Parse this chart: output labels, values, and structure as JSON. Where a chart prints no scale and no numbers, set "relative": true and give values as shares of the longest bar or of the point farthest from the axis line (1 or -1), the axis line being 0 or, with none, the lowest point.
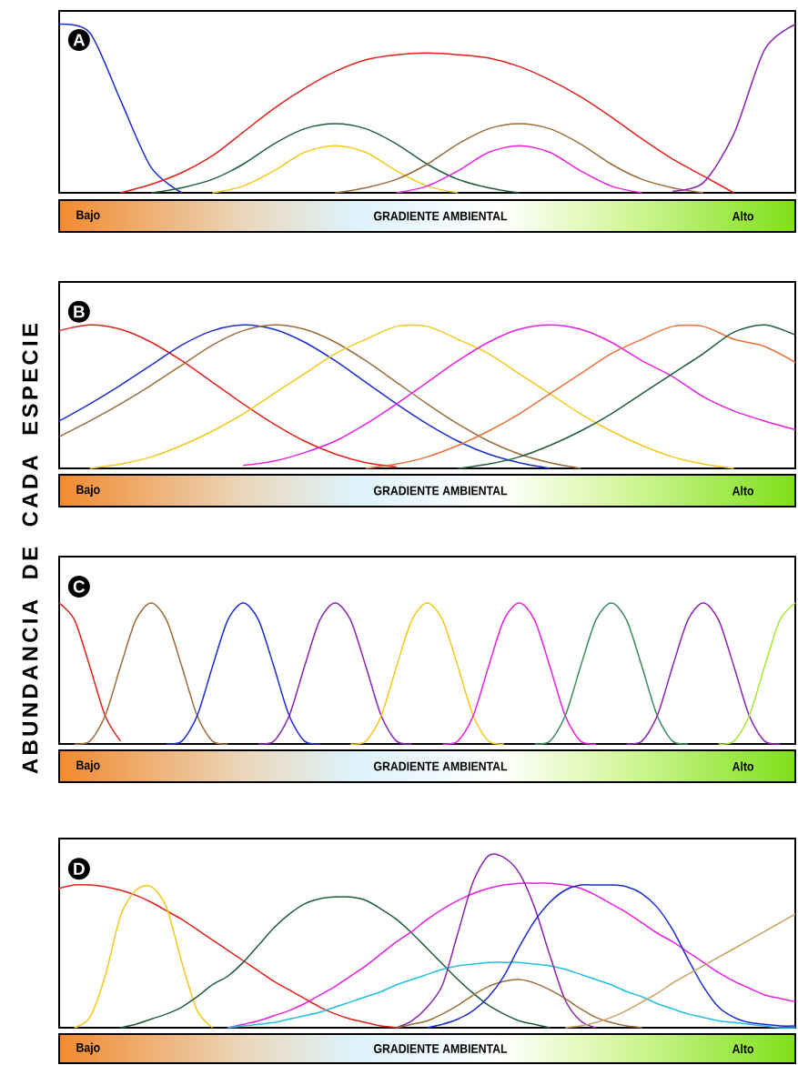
{
  "chart_data": [
    {
      "type": "line",
      "title": "A",
      "xlabel": "GRADIENTE AMBIENTAL",
      "annotations": [
        "Bajo",
        "Alto"
      ],
      "relative": true,
      "categories": [
        null,
        null,
        null,
        null,
        null,
        null,
        null,
        null,
        null,
        null,
        null,
        null,
        null,
        null,
        null,
        null,
        null,
        null,
        null,
        null,
        null,
        null,
        null,
        null,
        null
      ],
      "series": [
        {
          "color": "#1b2bd0",
          "values": [
            1.0,
            0.95,
            0.55,
            0.15,
            0.0,
            null,
            null,
            null,
            null,
            null,
            null,
            null,
            null,
            null,
            null,
            null,
            null,
            null,
            null,
            null,
            null,
            null,
            null,
            null,
            null
          ]
        },
        {
          "color": "#e0201b",
          "values": [
            null,
            null,
            0.0,
            0.05,
            0.12,
            0.22,
            0.36,
            0.5,
            0.62,
            0.72,
            0.79,
            0.82,
            0.83,
            0.82,
            0.8,
            0.75,
            0.67,
            0.57,
            0.45,
            0.32,
            0.2,
            0.1,
            0.0,
            null,
            null
          ]
        },
        {
          "color": "#1f5e3a",
          "values": [
            null,
            null,
            null,
            0.0,
            0.03,
            0.08,
            0.17,
            0.29,
            0.38,
            0.41,
            0.38,
            0.29,
            0.17,
            0.08,
            0.03,
            0.0,
            null,
            null,
            null,
            null,
            null,
            null,
            null,
            null,
            null
          ]
        },
        {
          "color": "#f2c81b",
          "values": [
            null,
            null,
            null,
            null,
            null,
            0.0,
            0.04,
            0.13,
            0.24,
            0.28,
            0.24,
            0.13,
            0.04,
            0.0,
            null,
            null,
            null,
            null,
            null,
            null,
            null,
            null,
            null,
            null,
            null
          ]
        },
        {
          "color": "#9b6b3a",
          "values": [
            null,
            null,
            null,
            null,
            null,
            null,
            null,
            null,
            null,
            0.0,
            0.03,
            0.08,
            0.17,
            0.29,
            0.38,
            0.41,
            0.38,
            0.29,
            0.17,
            0.08,
            0.03,
            0.0,
            null,
            null,
            null
          ]
        },
        {
          "color": "#e81fe0",
          "values": [
            null,
            null,
            null,
            null,
            null,
            null,
            null,
            null,
            null,
            null,
            null,
            0.0,
            0.04,
            0.13,
            0.24,
            0.28,
            0.24,
            0.13,
            0.04,
            0.0,
            null,
            null,
            null,
            null,
            null
          ]
        },
        {
          "color": "#8a22b0",
          "values": [
            null,
            null,
            null,
            null,
            null,
            null,
            null,
            null,
            null,
            null,
            null,
            null,
            null,
            null,
            null,
            null,
            null,
            null,
            null,
            null,
            0.01,
            0.06,
            0.35,
            0.85,
            1.0
          ]
        }
      ]
    },
    {
      "type": "line",
      "title": "B",
      "ylabel": "ABUNDANCIA DE CADA ESPECIE",
      "xlabel": "GRADIENTE AMBIENTAL",
      "annotations": [
        "Bajo",
        "Alto"
      ],
      "relative": true,
      "categories": [
        null,
        null,
        null,
        null,
        null,
        null,
        null,
        null,
        null,
        null,
        null,
        null,
        null,
        null,
        null,
        null,
        null,
        null,
        null,
        null,
        null,
        null,
        null,
        null,
        null
      ],
      "series": [
        {
          "color": "#e0201b",
          "values": [
            0.96,
            1.0,
            0.97,
            0.88,
            0.75,
            0.6,
            0.45,
            0.31,
            0.19,
            0.1,
            0.04,
            0.01,
            null,
            null,
            null,
            null,
            null,
            null,
            null,
            null,
            null,
            null,
            null,
            null,
            null
          ]
        },
        {
          "color": "#1b2bd0",
          "values": [
            0.33,
            0.45,
            0.58,
            0.72,
            0.86,
            0.96,
            1.0,
            0.97,
            0.88,
            0.75,
            0.6,
            0.45,
            0.31,
            0.19,
            0.1,
            0.04,
            0.0,
            null,
            null,
            null,
            null,
            null,
            null,
            null,
            null
          ]
        },
        {
          "color": "#9b6b3a",
          "values": [
            0.22,
            0.33,
            0.45,
            0.58,
            0.72,
            0.86,
            0.96,
            1.0,
            0.97,
            0.88,
            0.75,
            0.6,
            0.45,
            0.31,
            0.19,
            0.1,
            0.04,
            0.0,
            null,
            null,
            null,
            null,
            null,
            null,
            null
          ]
        },
        {
          "color": "#f2c81b",
          "values": [
            null,
            0.0,
            0.03,
            0.08,
            0.16,
            0.26,
            0.38,
            0.52,
            0.66,
            0.8,
            0.9,
            0.99,
            0.99,
            0.9,
            0.8,
            0.66,
            0.52,
            0.38,
            0.26,
            0.16,
            0.08,
            0.03,
            0.0,
            null,
            null
          ]
        },
        {
          "color": "#e81fe0",
          "values": [
            null,
            null,
            null,
            null,
            null,
            null,
            0.02,
            0.05,
            0.11,
            0.19,
            0.31,
            0.45,
            0.6,
            0.75,
            0.88,
            0.97,
            1.0,
            0.97,
            0.88,
            0.75,
            0.64,
            0.5,
            0.4,
            0.33,
            0.27
          ]
        },
        {
          "color": "#e8703a",
          "values": [
            null,
            null,
            null,
            null,
            null,
            null,
            null,
            null,
            null,
            null,
            0.0,
            0.03,
            0.08,
            0.16,
            0.26,
            0.38,
            0.52,
            0.66,
            0.8,
            0.9,
            0.99,
            0.99,
            0.9,
            0.85,
            0.74
          ]
        },
        {
          "color": "#1f5e3a",
          "values": [
            null,
            null,
            null,
            null,
            null,
            null,
            null,
            null,
            null,
            null,
            null,
            null,
            null,
            0.0,
            0.03,
            0.08,
            0.16,
            0.26,
            0.38,
            0.52,
            0.66,
            0.8,
            0.95,
            1.0,
            0.93
          ]
        }
      ]
    },
    {
      "type": "line",
      "title": "C",
      "xlabel": "GRADIENTE AMBIENTAL",
      "annotations": [
        "Bajo",
        "Alto"
      ],
      "relative": true,
      "categories": [
        null,
        null,
        null,
        null,
        null,
        null,
        null,
        null,
        null,
        null,
        null,
        null,
        null,
        null,
        null,
        null,
        null,
        null,
        null,
        null,
        null,
        null,
        null,
        null,
        null,
        null,
        null,
        null,
        null,
        null,
        null,
        null,
        null,
        null,
        null,
        null,
        null,
        null,
        null,
        null,
        null,
        null,
        null,
        null,
        null,
        null,
        null,
        null,
        null
      ],
      "series": [
        {
          "color": "#e0201b",
          "values": [
            1.0,
            0.88,
            0.55,
            0.2,
            0.02,
            null,
            null,
            null,
            null,
            null,
            null,
            null,
            null,
            null,
            null,
            null,
            null,
            null,
            null,
            null,
            null,
            null,
            null,
            null,
            null,
            null,
            null,
            null,
            null,
            null,
            null,
            null,
            null,
            null,
            null,
            null,
            null,
            null,
            null,
            null,
            null,
            null,
            null,
            null,
            null,
            null,
            null,
            null,
            null
          ]
        },
        {
          "color": "#9b6b3a",
          "values": [
            null,
            0.0,
            0.02,
            0.2,
            0.55,
            0.88,
            1.0,
            0.88,
            0.55,
            0.2,
            0.02,
            0.0,
            null,
            null,
            null,
            null,
            null,
            null,
            null,
            null,
            null,
            null,
            null,
            null,
            null,
            null,
            null,
            null,
            null,
            null,
            null,
            null,
            null,
            null,
            null,
            null,
            null,
            null,
            null,
            null,
            null,
            null,
            null,
            null,
            null,
            null,
            null,
            null,
            null
          ]
        },
        {
          "color": "#1b2bd0",
          "values": [
            null,
            null,
            null,
            null,
            null,
            null,
            null,
            0.0,
            0.02,
            0.2,
            0.55,
            0.88,
            1.0,
            0.88,
            0.55,
            0.2,
            0.02,
            0.0,
            null,
            null,
            null,
            null,
            null,
            null,
            null,
            null,
            null,
            null,
            null,
            null,
            null,
            null,
            null,
            null,
            null,
            null,
            null,
            null,
            null,
            null,
            null,
            null,
            null,
            null,
            null,
            null,
            null,
            null,
            null
          ]
        },
        {
          "color": "#8a22b0",
          "values": [
            null,
            null,
            null,
            null,
            null,
            null,
            null,
            null,
            null,
            null,
            null,
            null,
            null,
            0.0,
            0.02,
            0.2,
            0.55,
            0.88,
            1.0,
            0.88,
            0.55,
            0.2,
            0.02,
            0.0,
            null,
            null,
            null,
            null,
            null,
            null,
            null,
            null,
            null,
            null,
            null,
            null,
            null,
            null,
            null,
            null,
            null,
            null,
            null,
            null,
            null,
            null,
            null,
            null,
            null
          ]
        },
        {
          "color": "#f2c81b",
          "values": [
            null,
            null,
            null,
            null,
            null,
            null,
            null,
            null,
            null,
            null,
            null,
            null,
            null,
            null,
            null,
            null,
            null,
            null,
            null,
            0.0,
            0.02,
            0.2,
            0.55,
            0.88,
            1.0,
            0.88,
            0.55,
            0.2,
            0.02,
            0.0,
            null,
            null,
            null,
            null,
            null,
            null,
            null,
            null,
            null,
            null,
            null,
            null,
            null,
            null,
            null,
            null,
            null,
            null,
            null
          ]
        },
        {
          "color": "#e81fe0",
          "values": [
            null,
            null,
            null,
            null,
            null,
            null,
            null,
            null,
            null,
            null,
            null,
            null,
            null,
            null,
            null,
            null,
            null,
            null,
            null,
            null,
            null,
            null,
            null,
            null,
            null,
            0.0,
            0.02,
            0.2,
            0.55,
            0.88,
            1.0,
            0.88,
            0.55,
            0.2,
            0.02,
            0.0,
            null,
            null,
            null,
            null,
            null,
            null,
            null,
            null,
            null,
            null,
            null,
            null,
            null
          ]
        },
        {
          "color": "#3b8a5e",
          "values": [
            null,
            null,
            null,
            null,
            null,
            null,
            null,
            null,
            null,
            null,
            null,
            null,
            null,
            null,
            null,
            null,
            null,
            null,
            null,
            null,
            null,
            null,
            null,
            null,
            null,
            null,
            null,
            null,
            null,
            null,
            null,
            0.0,
            0.02,
            0.2,
            0.55,
            0.88,
            1.0,
            0.88,
            0.55,
            0.2,
            0.02,
            0.0,
            null,
            null,
            null,
            null,
            null,
            null,
            null
          ]
        },
        {
          "color": "#8a22b0",
          "values": [
            null,
            null,
            null,
            null,
            null,
            null,
            null,
            null,
            null,
            null,
            null,
            null,
            null,
            null,
            null,
            null,
            null,
            null,
            null,
            null,
            null,
            null,
            null,
            null,
            null,
            null,
            null,
            null,
            null,
            null,
            null,
            null,
            null,
            null,
            null,
            null,
            null,
            0.0,
            0.02,
            0.2,
            0.55,
            0.88,
            1.0,
            0.88,
            0.55,
            0.2,
            0.02,
            0.0,
            null
          ]
        },
        {
          "color": "#a8e830",
          "values": [
            null,
            null,
            null,
            null,
            null,
            null,
            null,
            null,
            null,
            null,
            null,
            null,
            null,
            null,
            null,
            null,
            null,
            null,
            null,
            null,
            null,
            null,
            null,
            null,
            null,
            null,
            null,
            null,
            null,
            null,
            null,
            null,
            null,
            null,
            null,
            null,
            null,
            null,
            null,
            null,
            null,
            null,
            null,
            0.0,
            0.02,
            0.2,
            0.55,
            0.88,
            1.0
          ]
        }
      ]
    },
    {
      "type": "line",
      "title": "D",
      "xlabel": "GRADIENTE AMBIENTAL",
      "annotations": [
        "Bajo",
        "Alto"
      ],
      "relative": true,
      "categories": [
        null,
        null,
        null,
        null,
        null,
        null,
        null,
        null,
        null,
        null,
        null,
        null,
        null,
        null,
        null,
        null,
        null,
        null,
        null,
        null,
        null,
        null,
        null,
        null,
        null,
        null,
        null,
        null,
        null,
        null,
        null,
        null,
        null,
        null,
        null,
        null,
        null,
        null,
        null,
        null,
        null,
        null,
        null,
        null,
        null,
        null,
        null,
        null,
        null
      ],
      "series": [
        {
          "color": "#e0201b",
          "values": [
            0.81,
            0.83,
            0.83,
            0.82,
            0.8,
            0.77,
            0.73,
            0.68,
            0.63,
            0.57,
            0.51,
            0.45,
            0.39,
            0.33,
            0.27,
            0.22,
            0.17,
            0.12,
            0.08,
            0.05,
            0.03,
            0.01,
            0.0,
            null,
            null,
            null,
            null,
            null,
            null,
            null,
            null,
            null,
            null,
            null,
            null,
            null,
            null,
            null,
            null,
            null,
            null,
            null,
            null,
            null,
            null,
            null,
            null,
            null,
            null
          ]
        },
        {
          "color": "#f2c81b",
          "values": [
            null,
            0.0,
            0.06,
            0.3,
            0.65,
            0.8,
            0.82,
            0.7,
            0.38,
            0.1,
            0.0,
            null,
            null,
            null,
            null,
            null,
            null,
            null,
            null,
            null,
            null,
            null,
            null,
            null,
            null,
            null,
            null,
            null,
            null,
            null,
            null,
            null,
            null,
            null,
            null,
            null,
            null,
            null,
            null,
            null,
            null,
            null,
            null,
            null,
            null,
            null,
            null,
            null,
            null
          ]
        },
        {
          "color": "#1f5e3a",
          "values": [
            null,
            null,
            null,
            null,
            0.0,
            0.02,
            0.05,
            0.08,
            0.12,
            0.18,
            0.25,
            0.3,
            0.38,
            0.48,
            0.58,
            0.66,
            0.72,
            0.75,
            0.76,
            0.76,
            0.74,
            0.69,
            0.63,
            0.55,
            0.46,
            0.37,
            0.28,
            0.2,
            0.13,
            0.08,
            0.04,
            0.02,
            0.0,
            null,
            null,
            null,
            null,
            null,
            null,
            null,
            null,
            null,
            null,
            null,
            null,
            null,
            null,
            null,
            null
          ]
        },
        {
          "color": "#e81fe0",
          "values": [
            null,
            null,
            null,
            null,
            null,
            null,
            null,
            null,
            null,
            null,
            null,
            0.0,
            0.02,
            0.04,
            0.07,
            0.1,
            0.14,
            0.19,
            0.24,
            0.3,
            0.36,
            0.43,
            0.5,
            0.56,
            0.63,
            0.69,
            0.74,
            0.78,
            0.81,
            0.83,
            0.84,
            0.84,
            0.84,
            0.83,
            0.81,
            0.77,
            0.72,
            0.67,
            0.61,
            0.55,
            0.5,
            0.44,
            0.38,
            0.32,
            0.27,
            0.23,
            0.19,
            0.17,
            0.15
          ]
        },
        {
          "color": "#20c0e0",
          "values": [
            null,
            null,
            null,
            null,
            null,
            null,
            null,
            null,
            null,
            null,
            null,
            0.0,
            0.01,
            0.02,
            0.03,
            0.05,
            0.07,
            0.09,
            0.12,
            0.15,
            0.18,
            0.21,
            0.25,
            0.28,
            0.31,
            0.34,
            0.36,
            0.37,
            0.38,
            0.38,
            0.38,
            0.37,
            0.36,
            0.34,
            0.31,
            0.28,
            0.25,
            0.21,
            0.18,
            0.14,
            0.11,
            0.08,
            0.06,
            0.04,
            0.03,
            0.02,
            0.01,
            0.0,
            0.0
          ]
        },
        {
          "color": "#8a22b0",
          "values": [
            null,
            null,
            null,
            null,
            null,
            null,
            null,
            null,
            null,
            null,
            null,
            null,
            null,
            null,
            null,
            null,
            null,
            null,
            null,
            null,
            null,
            null,
            0.0,
            0.04,
            0.12,
            0.25,
            0.55,
            0.85,
            1.0,
            0.99,
            0.9,
            0.7,
            0.42,
            0.16,
            0.04,
            0.0,
            null,
            null,
            null,
            null,
            null,
            null,
            null,
            null,
            null,
            null,
            null,
            null,
            null
          ]
        },
        {
          "color": "#9b6b3a",
          "values": [
            null,
            null,
            null,
            null,
            null,
            null,
            null,
            null,
            null,
            null,
            null,
            null,
            null,
            null,
            null,
            null,
            null,
            null,
            null,
            null,
            null,
            null,
            0.0,
            0.02,
            0.04,
            0.08,
            0.13,
            0.19,
            0.24,
            0.27,
            0.28,
            0.26,
            0.22,
            0.17,
            0.11,
            0.06,
            0.03,
            0.01,
            0.0,
            null,
            null,
            null,
            null,
            null,
            null,
            null,
            null,
            null,
            null
          ]
        },
        {
          "color": "#1b2bd0",
          "values": [
            null,
            null,
            null,
            null,
            null,
            null,
            null,
            null,
            null,
            null,
            null,
            null,
            null,
            null,
            null,
            null,
            null,
            null,
            null,
            null,
            null,
            null,
            null,
            null,
            0.0,
            0.02,
            0.05,
            0.1,
            0.18,
            0.3,
            0.47,
            0.62,
            0.73,
            0.8,
            0.83,
            0.83,
            0.83,
            0.82,
            0.78,
            0.7,
            0.57,
            0.4,
            0.24,
            0.12,
            0.06,
            0.03,
            0.02,
            0.01,
            0.01
          ]
        },
        {
          "color": "#c8a060",
          "values": [
            null,
            null,
            null,
            null,
            null,
            null,
            null,
            null,
            null,
            null,
            null,
            null,
            null,
            null,
            null,
            null,
            null,
            null,
            null,
            null,
            null,
            null,
            null,
            null,
            null,
            null,
            null,
            null,
            null,
            null,
            null,
            null,
            null,
            0.0,
            0.01,
            0.03,
            0.06,
            0.1,
            0.15,
            0.2,
            0.26,
            0.31,
            0.36,
            0.41,
            0.46,
            0.51,
            0.56,
            0.61,
            0.66
          ]
        }
      ]
    }
  ]
}
